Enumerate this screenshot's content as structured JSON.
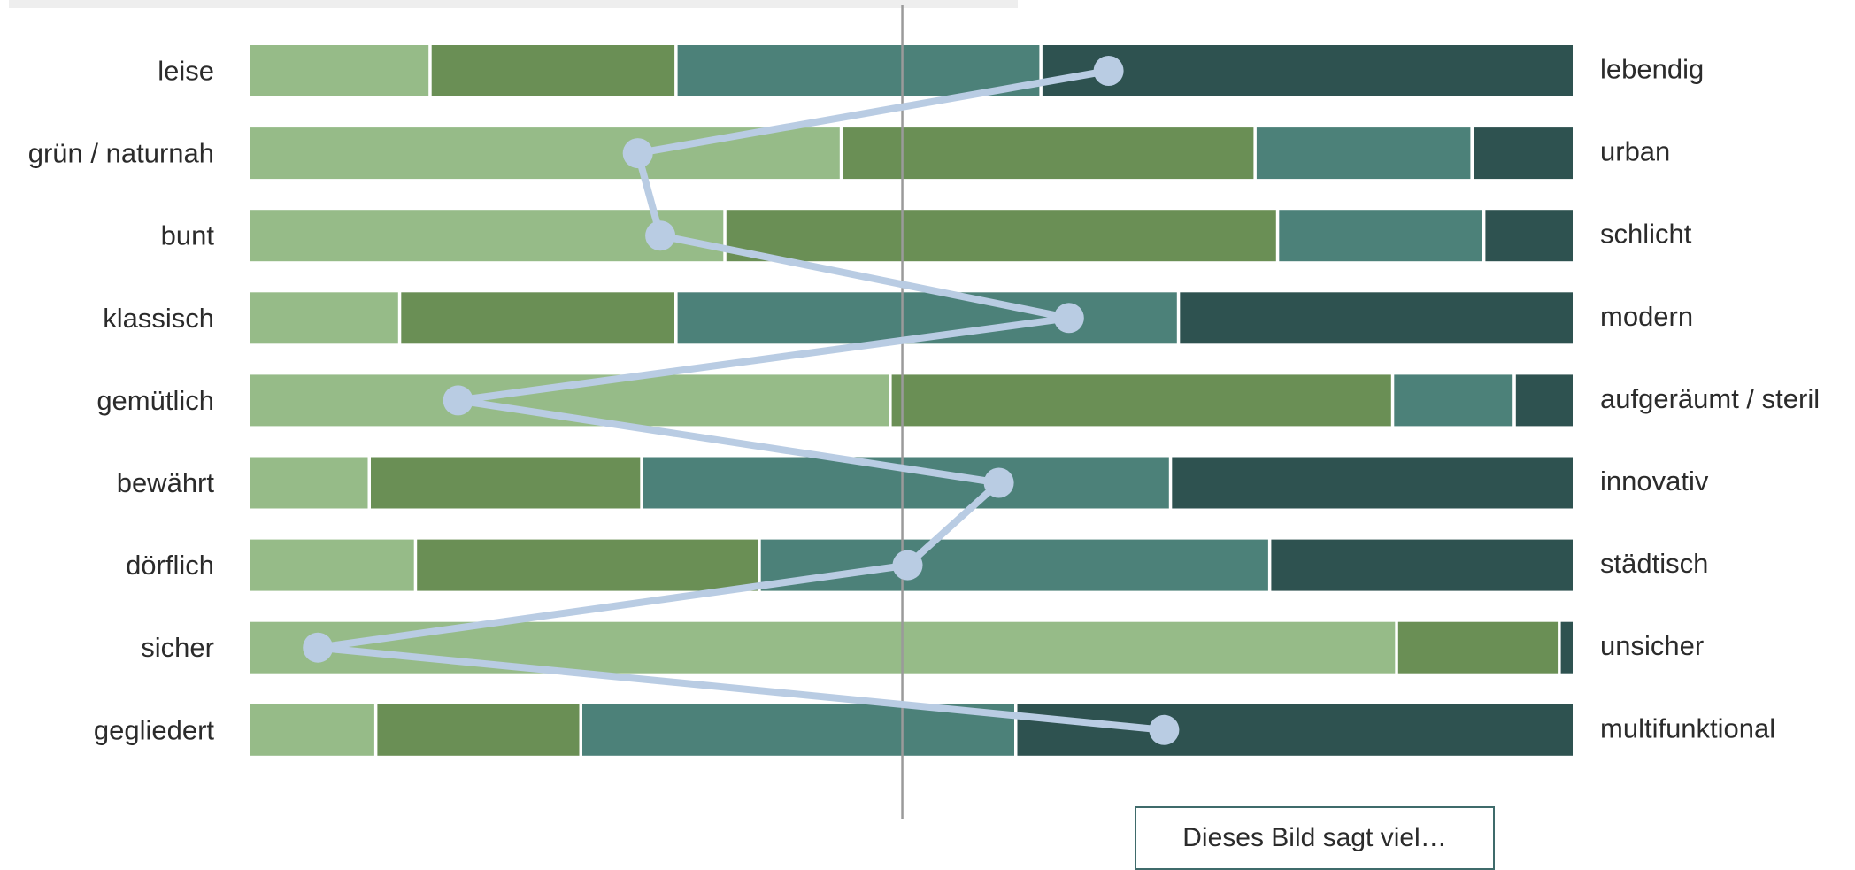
{
  "colors": {
    "segments": [
      "#96bb88",
      "#6a8f55",
      "#4c8179",
      "#2e5250"
    ],
    "marker": "#b9cce3",
    "center_line": "#9a9a9a"
  },
  "chart_data": {
    "type": "bar",
    "layout": "stacked-horizontal-100pct-semantic-differential",
    "grid": false,
    "legend": "none",
    "xlim": [
      0,
      100
    ],
    "title": "",
    "xlabel": "",
    "ylabel": "",
    "center_value": 49.3,
    "rows": [
      {
        "left": "leise",
        "right": "lebendig",
        "values": [
          13.7,
          18.6,
          27.6,
          40.1
        ],
        "mean": 64.9
      },
      {
        "left": "grün / naturnah",
        "right": "urban",
        "values": [
          44.8,
          31.3,
          16.4,
          7.5
        ],
        "mean": 29.3
      },
      {
        "left": "bunt",
        "right": "schlicht",
        "values": [
          36.0,
          41.8,
          15.6,
          6.6
        ],
        "mean": 31.0
      },
      {
        "left": "klassisch",
        "right": "modern",
        "values": [
          11.4,
          20.9,
          38.0,
          29.7
        ],
        "mean": 61.9
      },
      {
        "left": "gemütlich",
        "right": "aufgeräumt / steril",
        "values": [
          48.5,
          38.0,
          9.2,
          4.3
        ],
        "mean": 15.7
      },
      {
        "left": "bewährt",
        "right": "innovativ",
        "values": [
          9.1,
          20.6,
          40.0,
          30.3
        ],
        "mean": 56.6
      },
      {
        "left": "dörflich",
        "right": "städtisch",
        "values": [
          12.6,
          26.0,
          38.6,
          22.8
        ],
        "mean": 49.7
      },
      {
        "left": "sicher",
        "right": "unsicher",
        "values": [
          86.8,
          12.3,
          0.0,
          0.9
        ],
        "mean": 5.1
      },
      {
        "left": "gegliedert",
        "right": "multifunktional",
        "values": [
          9.6,
          15.5,
          32.9,
          42.0
        ],
        "mean": 69.1
      }
    ]
  },
  "button": {
    "label": "Dieses Bild sagt viel…"
  }
}
